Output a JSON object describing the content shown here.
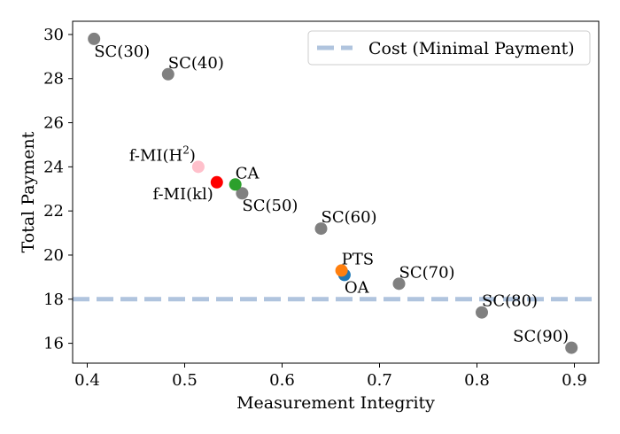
{
  "chart_data": {
    "type": "scatter",
    "xlabel": "Measurement Integrity",
    "ylabel": "Total Payment",
    "xlim": [
      0.385,
      0.925
    ],
    "ylim": [
      15.1,
      30.6
    ],
    "xticks": [
      {
        "value": 0.4,
        "label": "0.4"
      },
      {
        "value": 0.5,
        "label": "0.5"
      },
      {
        "value": 0.6,
        "label": "0.6"
      },
      {
        "value": 0.7,
        "label": "0.7"
      },
      {
        "value": 0.8,
        "label": "0.8"
      },
      {
        "value": 0.9,
        "label": "0.9"
      }
    ],
    "yticks": [
      {
        "value": 16,
        "label": "16"
      },
      {
        "value": 18,
        "label": "18"
      },
      {
        "value": 20,
        "label": "20"
      },
      {
        "value": 22,
        "label": "22"
      },
      {
        "value": 24,
        "label": "24"
      },
      {
        "value": 26,
        "label": "26"
      },
      {
        "value": 28,
        "label": "28"
      },
      {
        "value": 30,
        "label": "30"
      }
    ],
    "reference_line": {
      "y": 18.0,
      "label": "Cost (Minimal Payment)",
      "color": "#b0c4de",
      "style": "dashed"
    },
    "legend": {
      "position": "top-right",
      "entries": [
        "Cost (Minimal Payment)"
      ]
    },
    "points": [
      {
        "name": "SC(30)",
        "label": "SC(30)",
        "x": 0.407,
        "y": 29.8,
        "color": "#808080",
        "anchor": "below-right"
      },
      {
        "name": "SC(40)",
        "label": "SC(40)",
        "x": 0.483,
        "y": 28.2,
        "color": "#808080",
        "anchor": "above-right"
      },
      {
        "name": "f-MI(H^2)",
        "label": "f-MI(H",
        "label_sup": "2",
        "label_end": ")",
        "x": 0.514,
        "y": 24.0,
        "color": "#ffc0cb",
        "anchor": "above-left"
      },
      {
        "name": "f-MI(kl)",
        "label": "f-MI(kl)",
        "x": 0.533,
        "y": 23.3,
        "color": "#ff0000",
        "anchor": "below-left"
      },
      {
        "name": "SC(50)",
        "label": "SC(50)",
        "x": 0.559,
        "y": 22.8,
        "color": "#808080",
        "anchor": "below-right"
      },
      {
        "name": "CA",
        "label": "CA",
        "x": 0.552,
        "y": 23.2,
        "color": "#2ca02c",
        "anchor": "above-right"
      },
      {
        "name": "SC(60)",
        "label": "SC(60)",
        "x": 0.64,
        "y": 21.2,
        "color": "#808080",
        "anchor": "above-right"
      },
      {
        "name": "OA",
        "label": "OA",
        "x": 0.664,
        "y": 19.1,
        "color": "#1f77b4",
        "anchor": "below-right"
      },
      {
        "name": "PTS",
        "label": "PTS",
        "x": 0.661,
        "y": 19.3,
        "color": "#ff7f0e",
        "anchor": "above-right"
      },
      {
        "name": "SC(70)",
        "label": "SC(70)",
        "x": 0.72,
        "y": 18.7,
        "color": "#808080",
        "anchor": "above-right"
      },
      {
        "name": "SC(80)",
        "label": "SC(80)",
        "x": 0.805,
        "y": 17.4,
        "color": "#808080",
        "anchor": "above-right"
      },
      {
        "name": "SC(90)",
        "label": "SC(90)",
        "x": 0.897,
        "y": 15.8,
        "color": "#808080",
        "anchor": "above-left"
      }
    ]
  }
}
